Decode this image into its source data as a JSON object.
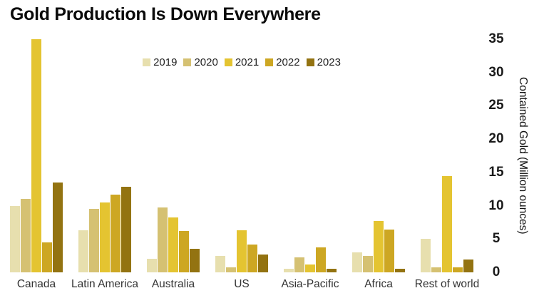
{
  "title": "Gold Production Is Down Everywhere",
  "chart_data": {
    "type": "bar",
    "title": "Gold Production Is Down Everywhere",
    "categories": [
      "Canada",
      "Latin America",
      "Australia",
      "US",
      "Asia-Pacific",
      "Africa",
      "Rest of world"
    ],
    "series": [
      {
        "name": "2019",
        "color": "#e7dfae",
        "values": [
          10,
          6.3,
          2,
          2.5,
          0.5,
          3,
          5
        ]
      },
      {
        "name": "2020",
        "color": "#d5c172",
        "values": [
          11,
          9.5,
          9.7,
          0.8,
          2.3,
          2.5,
          0.8
        ]
      },
      {
        "name": "2021",
        "color": "#e4c431",
        "values": [
          35,
          10.5,
          8.2,
          6.3,
          1.2,
          7.7,
          14.5
        ]
      },
      {
        "name": "2022",
        "color": "#cda723",
        "values": [
          4.5,
          11.7,
          6.2,
          4.2,
          3.7,
          6.4,
          0.8
        ]
      },
      {
        "name": "2023",
        "color": "#937311",
        "values": [
          13.5,
          12.8,
          3.5,
          2.7,
          0.5,
          0.5,
          1.9
        ]
      }
    ],
    "xlabel": "",
    "ylabel": "Contained Gold (Million ounces)",
    "ylim": [
      0,
      35
    ],
    "yticks": [
      0,
      5,
      10,
      15,
      20,
      25,
      30,
      35
    ],
    "legend_position": "top-center",
    "grid": false
  }
}
